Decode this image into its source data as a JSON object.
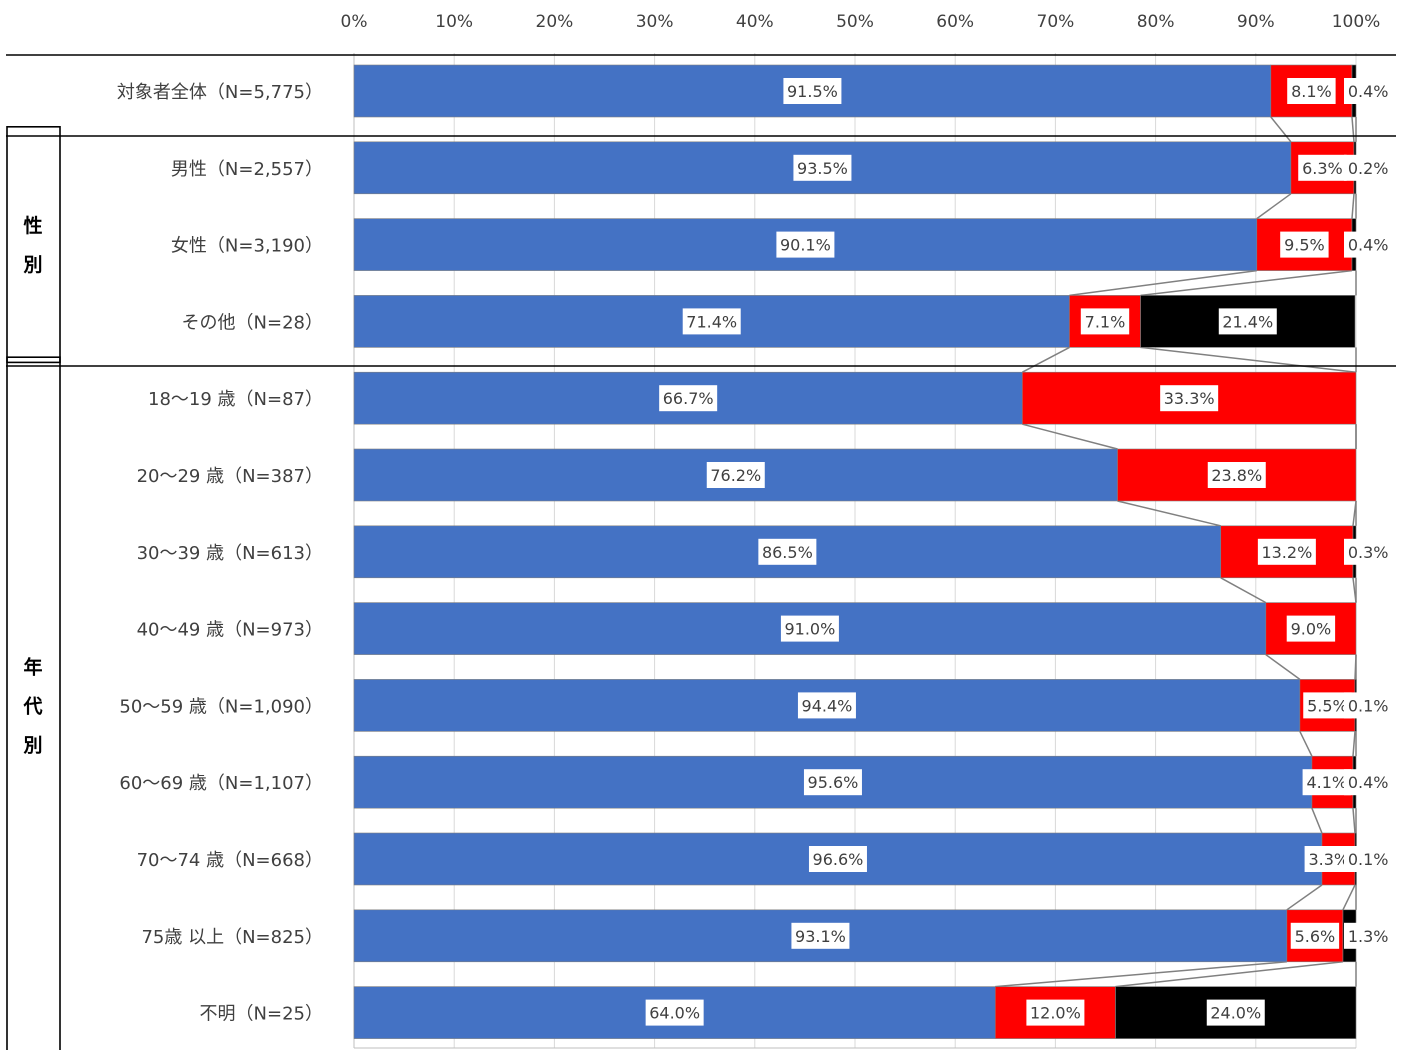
{
  "chart_data": {
    "type": "bar",
    "orientation": "horizontal",
    "stacked": true,
    "percent_stacked": true,
    "xlim": [
      0,
      100
    ],
    "x_ticks": [
      "0%",
      "10%",
      "20%",
      "30%",
      "40%",
      "50%",
      "60%",
      "70%",
      "80%",
      "90%",
      "100%"
    ],
    "grid": true,
    "series_colors": [
      "#4472C4",
      "#FF0000",
      "#000000"
    ],
    "groups": [
      {
        "label": "",
        "rows": [
          0
        ]
      },
      {
        "label": "性別",
        "rows": [
          1,
          2,
          3
        ]
      },
      {
        "label": "年代別",
        "rows": [
          4,
          5,
          6,
          7,
          8,
          9,
          10,
          11,
          12
        ]
      }
    ],
    "categories": [
      "対象者全体（N=5,775）",
      "男性（N=2,557）",
      "女性（N=3,190）",
      "その他（N=28）",
      "18～19 歳（N=87）",
      "20～29 歳（N=387）",
      "30～39 歳（N=613）",
      "40～49 歳（N=973）",
      "50～59 歳（N=1,090）",
      "60～69 歳（N=1,107）",
      "70～74 歳（N=668）",
      "75歳 以上（N=825）",
      "不明（N=25）"
    ],
    "series": [
      {
        "values": [
          91.5,
          93.5,
          90.1,
          71.4,
          66.7,
          76.2,
          86.5,
          91.0,
          94.4,
          95.6,
          96.6,
          93.1,
          64.0
        ],
        "labels": [
          "91.5%",
          "93.5%",
          "90.1%",
          "71.4%",
          "66.7%",
          "76.2%",
          "86.5%",
          "91.0%",
          "94.4%",
          "95.6%",
          "96.6%",
          "93.1%",
          "64.0%"
        ]
      },
      {
        "values": [
          8.1,
          6.3,
          9.5,
          7.1,
          33.3,
          23.8,
          13.2,
          9.0,
          5.5,
          4.1,
          3.3,
          5.6,
          12.0
        ],
        "labels": [
          "8.1%",
          "6.3%",
          "9.5%",
          "7.1%",
          "33.3%",
          "23.8%",
          "13.2%",
          "9.0%",
          "5.5%",
          "4.1%",
          "3.3%",
          "5.6%",
          "12.0%"
        ]
      },
      {
        "values": [
          0.4,
          0.2,
          0.4,
          21.4,
          0,
          0,
          0.3,
          0,
          0.1,
          0.4,
          0.1,
          1.3,
          24.0
        ],
        "labels": [
          "0.4%",
          "0.2%",
          "0.4%",
          "21.4%",
          "",
          "",
          "0.3%",
          "",
          "0.1%",
          "0.4%",
          "0.1%",
          "1.3%",
          "24.0%"
        ]
      }
    ]
  }
}
